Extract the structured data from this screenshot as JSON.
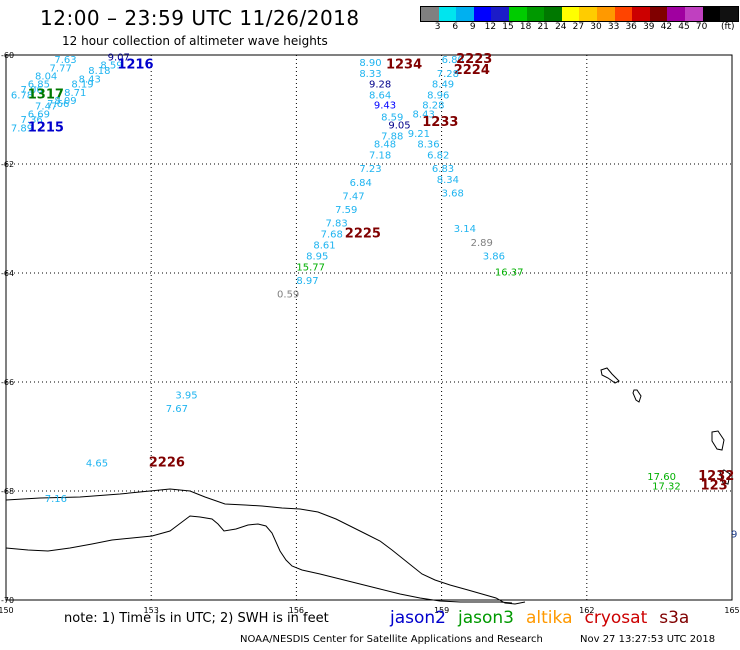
{
  "header": {
    "title": "12:00 – 23:59 UTC 11/26/2018",
    "subtitle": "12 hour collection of altimeter wave heights"
  },
  "legend": {
    "colors": [
      "#808080",
      "#00e5ee",
      "#00b0f0",
      "#0000ff",
      "#1c1cc8",
      "#00cc00",
      "#009900",
      "#007800",
      "#ffff00",
      "#ffcc00",
      "#ff9900",
      "#ff4400",
      "#cc0000",
      "#800000",
      "#a000a0",
      "#c040c0",
      "#000000",
      "#111111"
    ],
    "ticks": [
      "3",
      "6",
      "9",
      "12",
      "15",
      "18",
      "21",
      "24",
      "27",
      "30",
      "33",
      "36",
      "39",
      "42",
      "45",
      "70"
    ],
    "unit": "(ft)"
  },
  "axes": {
    "lat_labels": [
      "-60",
      "-62",
      "-64",
      "-66",
      "-68",
      "-70"
    ],
    "lon_labels": [
      "150",
      "153",
      "156",
      "159",
      "162",
      "165"
    ]
  },
  "observations": [
    {
      "t": "7.63",
      "lon": 151.0,
      "lat": -60.15,
      "c": "#1fb4f0"
    },
    {
      "t": "7.77",
      "lon": 150.9,
      "lat": -60.3,
      "c": "#1fb4f0"
    },
    {
      "t": "8.04",
      "lon": 150.6,
      "lat": -60.45,
      "c": "#1fb4f0"
    },
    {
      "t": "6.85",
      "lon": 150.45,
      "lat": -60.6,
      "c": "#1fb4f0"
    },
    {
      "t": "7.06",
      "lon": 150.3,
      "lat": -60.7,
      "c": "#1fb4f0"
    },
    {
      "t": "6.78",
      "lon": 150.1,
      "lat": -60.8,
      "c": "#1fb4f0"
    },
    {
      "t": "1317",
      "lon": 150.45,
      "lat": -60.8,
      "c": "#007800",
      "b": 1
    },
    {
      "t": "7.47",
      "lon": 150.6,
      "lat": -61.0,
      "c": "#1fb4f0"
    },
    {
      "t": "7.36",
      "lon": 150.3,
      "lat": -61.25,
      "c": "#1fb4f0"
    },
    {
      "t": "6.69",
      "lon": 150.45,
      "lat": -61.15,
      "c": "#1fb4f0"
    },
    {
      "t": "7.89",
      "lon": 150.1,
      "lat": -61.4,
      "c": "#1fb4f0"
    },
    {
      "t": "1215",
      "lon": 150.45,
      "lat": -61.4,
      "c": "#0000cc",
      "b": 1
    },
    {
      "t": "7.66",
      "lon": 150.85,
      "lat": -60.95,
      "c": "#1fb4f0"
    },
    {
      "t": "8.09",
      "lon": 151.0,
      "lat": -60.9,
      "c": "#1fb4f0"
    },
    {
      "t": "8.71",
      "lon": 151.2,
      "lat": -60.75,
      "c": "#1fb4f0"
    },
    {
      "t": "8.19",
      "lon": 151.35,
      "lat": -60.6,
      "c": "#1fb4f0"
    },
    {
      "t": "8.43",
      "lon": 151.5,
      "lat": -60.5,
      "c": "#1fb4f0"
    },
    {
      "t": "8.18",
      "lon": 151.7,
      "lat": -60.35,
      "c": "#1fb4f0"
    },
    {
      "t": "8.59",
      "lon": 151.95,
      "lat": -60.25,
      "c": "#1fb4f0"
    },
    {
      "t": "9.07",
      "lon": 152.1,
      "lat": -60.1,
      "c": "#00008b"
    },
    {
      "t": "1216",
      "lon": 152.3,
      "lat": -60.25,
      "c": "#0000cc",
      "b": 1
    },
    {
      "t": "8.90",
      "lon": 157.3,
      "lat": -60.2,
      "c": "#1fb4f0"
    },
    {
      "t": "1234",
      "lon": 157.85,
      "lat": -60.25,
      "c": "#800000",
      "b": 1
    },
    {
      "t": "8.33",
      "lon": 157.3,
      "lat": -60.4,
      "c": "#1fb4f0"
    },
    {
      "t": "9.28",
      "lon": 157.5,
      "lat": -60.6,
      "c": "#00008b"
    },
    {
      "t": "8.64",
      "lon": 157.5,
      "lat": -60.8,
      "c": "#1fb4f0"
    },
    {
      "t": "9.43",
      "lon": 157.6,
      "lat": -60.98,
      "c": "#0000ff"
    },
    {
      "t": "8.59",
      "lon": 157.75,
      "lat": -61.2,
      "c": "#1fb4f0"
    },
    {
      "t": "9.05",
      "lon": 157.9,
      "lat": -61.35,
      "c": "#00008b"
    },
    {
      "t": "7.88",
      "lon": 157.75,
      "lat": -61.55,
      "c": "#1fb4f0"
    },
    {
      "t": "8.48",
      "lon": 157.6,
      "lat": -61.7,
      "c": "#1fb4f0"
    },
    {
      "t": "7.18",
      "lon": 157.5,
      "lat": -61.9,
      "c": "#1fb4f0"
    },
    {
      "t": "7.23",
      "lon": 157.3,
      "lat": -62.15,
      "c": "#1fb4f0"
    },
    {
      "t": "6.84",
      "lon": 157.1,
      "lat": -62.4,
      "c": "#1fb4f0"
    },
    {
      "t": "7.47",
      "lon": 156.95,
      "lat": -62.65,
      "c": "#1fb4f0"
    },
    {
      "t": "7.59",
      "lon": 156.8,
      "lat": -62.9,
      "c": "#1fb4f0"
    },
    {
      "t": "7.83",
      "lon": 156.6,
      "lat": -63.15,
      "c": "#1fb4f0"
    },
    {
      "t": "2225",
      "lon": 157.0,
      "lat": -63.35,
      "c": "#800000",
      "b": 1
    },
    {
      "t": "7.68",
      "lon": 156.5,
      "lat": -63.35,
      "c": "#1fb4f0"
    },
    {
      "t": "8.61",
      "lon": 156.35,
      "lat": -63.55,
      "c": "#1fb4f0"
    },
    {
      "t": "8.95",
      "lon": 156.2,
      "lat": -63.75,
      "c": "#1fb4f0"
    },
    {
      "t": "15.77",
      "lon": 156.0,
      "lat": -63.95,
      "c": "#00b000"
    },
    {
      "t": "8.97",
      "lon": 156.0,
      "lat": -64.2,
      "c": "#1fb4f0"
    },
    {
      "t": "0.59",
      "lon": 155.6,
      "lat": -64.45,
      "c": "#808080"
    },
    {
      "t": "6.80",
      "lon": 159.0,
      "lat": -60.15,
      "c": "#1fb4f0"
    },
    {
      "t": "2223",
      "lon": 159.3,
      "lat": -60.15,
      "c": "#800000",
      "b": 1
    },
    {
      "t": "2224",
      "lon": 159.25,
      "lat": -60.35,
      "c": "#800000",
      "b": 1
    },
    {
      "t": "7.28",
      "lon": 158.9,
      "lat": -60.4,
      "c": "#1fb4f0"
    },
    {
      "t": "8.49",
      "lon": 158.8,
      "lat": -60.6,
      "c": "#1fb4f0"
    },
    {
      "t": "8.96",
      "lon": 158.7,
      "lat": -60.8,
      "c": "#1fb4f0"
    },
    {
      "t": "8.28",
      "lon": 158.6,
      "lat": -60.98,
      "c": "#1fb4f0"
    },
    {
      "t": "8.43",
      "lon": 158.4,
      "lat": -61.15,
      "c": "#1fb4f0"
    },
    {
      "t": "1233",
      "lon": 158.6,
      "lat": -61.3,
      "c": "#800000",
      "b": 1
    },
    {
      "t": "9.21",
      "lon": 158.3,
      "lat": -61.5,
      "c": "#1fb4f0"
    },
    {
      "t": "8.36",
      "lon": 158.5,
      "lat": -61.7,
      "c": "#1fb4f0"
    },
    {
      "t": "6.82",
      "lon": 158.7,
      "lat": -61.9,
      "c": "#1fb4f0"
    },
    {
      "t": "6.83",
      "lon": 158.8,
      "lat": -62.15,
      "c": "#1fb4f0"
    },
    {
      "t": "8.34",
      "lon": 158.9,
      "lat": -62.35,
      "c": "#1fb4f0"
    },
    {
      "t": "3.68",
      "lon": 159.0,
      "lat": -62.6,
      "c": "#1fb4f0"
    },
    {
      "t": "3.14",
      "lon": 159.25,
      "lat": -63.25,
      "c": "#1fb4f0"
    },
    {
      "t": "2.89",
      "lon": 159.6,
      "lat": -63.5,
      "c": "#808080"
    },
    {
      "t": "3.86",
      "lon": 159.85,
      "lat": -63.75,
      "c": "#1fb4f0"
    },
    {
      "t": "16.37",
      "lon": 160.1,
      "lat": -64.05,
      "c": "#00b000"
    },
    {
      "t": "3.95",
      "lon": 153.5,
      "lat": -66.3,
      "c": "#1fb4f0"
    },
    {
      "t": "7.67",
      "lon": 153.3,
      "lat": -66.55,
      "c": "#1fb4f0"
    },
    {
      "t": "4.65",
      "lon": 151.65,
      "lat": -67.55,
      "c": "#1fb4f0"
    },
    {
      "t": "2226",
      "lon": 152.95,
      "lat": -67.55,
      "c": "#800000",
      "b": 1
    },
    {
      "t": "7.16",
      "lon": 150.8,
      "lat": -68.2,
      "c": "#1fb4f0"
    },
    {
      "t": "17.60",
      "lon": 163.25,
      "lat": -67.8,
      "c": "#00b000"
    },
    {
      "t": "17.32",
      "lon": 163.35,
      "lat": -67.97,
      "c": "#00b000"
    },
    {
      "t": "1232",
      "lon": 164.3,
      "lat": -67.8,
      "c": "#800000",
      "b": 1
    },
    {
      "t": "123",
      "lon": 164.35,
      "lat": -67.97,
      "c": "#800000",
      "b": 1
    },
    {
      "t": "9",
      "lon": 164.98,
      "lat": -68.85,
      "c": "#1a3a8a"
    }
  ],
  "footer": {
    "note": "note: 1) Time is in UTC; 2) SWH is in feet",
    "satellites": [
      {
        "name": "jason2",
        "color": "#0000cc"
      },
      {
        "name": "jason3",
        "color": "#009900"
      },
      {
        "name": "altika",
        "color": "#ff9900"
      },
      {
        "name": "cryosat",
        "color": "#cc0000"
      },
      {
        "name": "s3a",
        "color": "#800000"
      }
    ],
    "credit": "NOAA/NESDIS Center for Satellite Applications and Research",
    "timestamp": "Nov 27 13:27:53 UTC 2018"
  }
}
